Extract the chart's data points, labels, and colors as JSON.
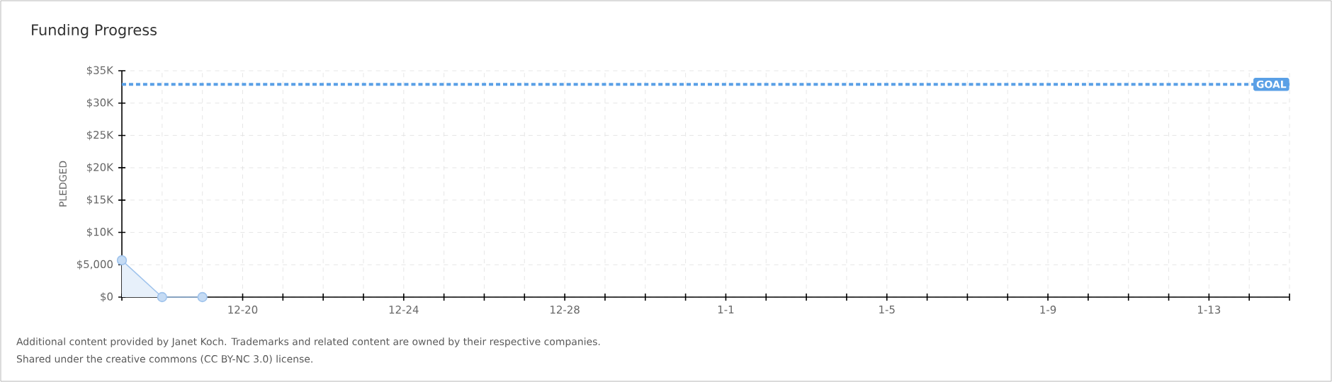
{
  "chart_data": {
    "type": "area",
    "title": "Funding Progress",
    "ylabel": "PLEDGED",
    "categories": [
      null,
      null,
      null,
      "12-20",
      null,
      null,
      null,
      "12-24",
      null,
      null,
      null,
      "12-28",
      null,
      null,
      null,
      "1-1",
      null,
      null,
      null,
      "1-5",
      null,
      null,
      null,
      "1-9",
      null,
      null,
      null,
      "1-13",
      null,
      null
    ],
    "series": [
      {
        "color": "#9fc3ec",
        "values": [
          5700,
          0,
          0,
          null,
          null,
          null,
          null,
          null,
          null,
          null,
          null,
          null,
          null,
          null,
          null,
          null,
          null,
          null,
          null,
          null,
          null,
          null,
          null,
          null,
          null,
          null,
          null,
          null,
          null,
          null
        ]
      }
    ],
    "marker": "circle",
    "grid": true,
    "ylim": [
      0,
      35000
    ],
    "yticks": [
      {
        "value": 0,
        "label": "$0"
      },
      {
        "value": 5000,
        "label": "$5,000"
      },
      {
        "value": 10000,
        "label": "$10K"
      },
      {
        "value": 15000,
        "label": "$15K"
      },
      {
        "value": 20000,
        "label": "$20K"
      },
      {
        "value": 25000,
        "label": "$25K"
      },
      {
        "value": 30000,
        "label": "$30K"
      },
      {
        "value": 35000,
        "label": "$35K"
      }
    ],
    "ref_lines": [
      {
        "axis": "y",
        "value": 32900,
        "label": "GOAL",
        "color": "#5aa0e6",
        "line_style": "dashed"
      }
    ],
    "annotations": [
      "Additional content provided by Janet Koch. Trademarks and related content are owned by their respective companies.",
      "Shared under the creative commons (CC BY-NC 3.0) license."
    ]
  }
}
